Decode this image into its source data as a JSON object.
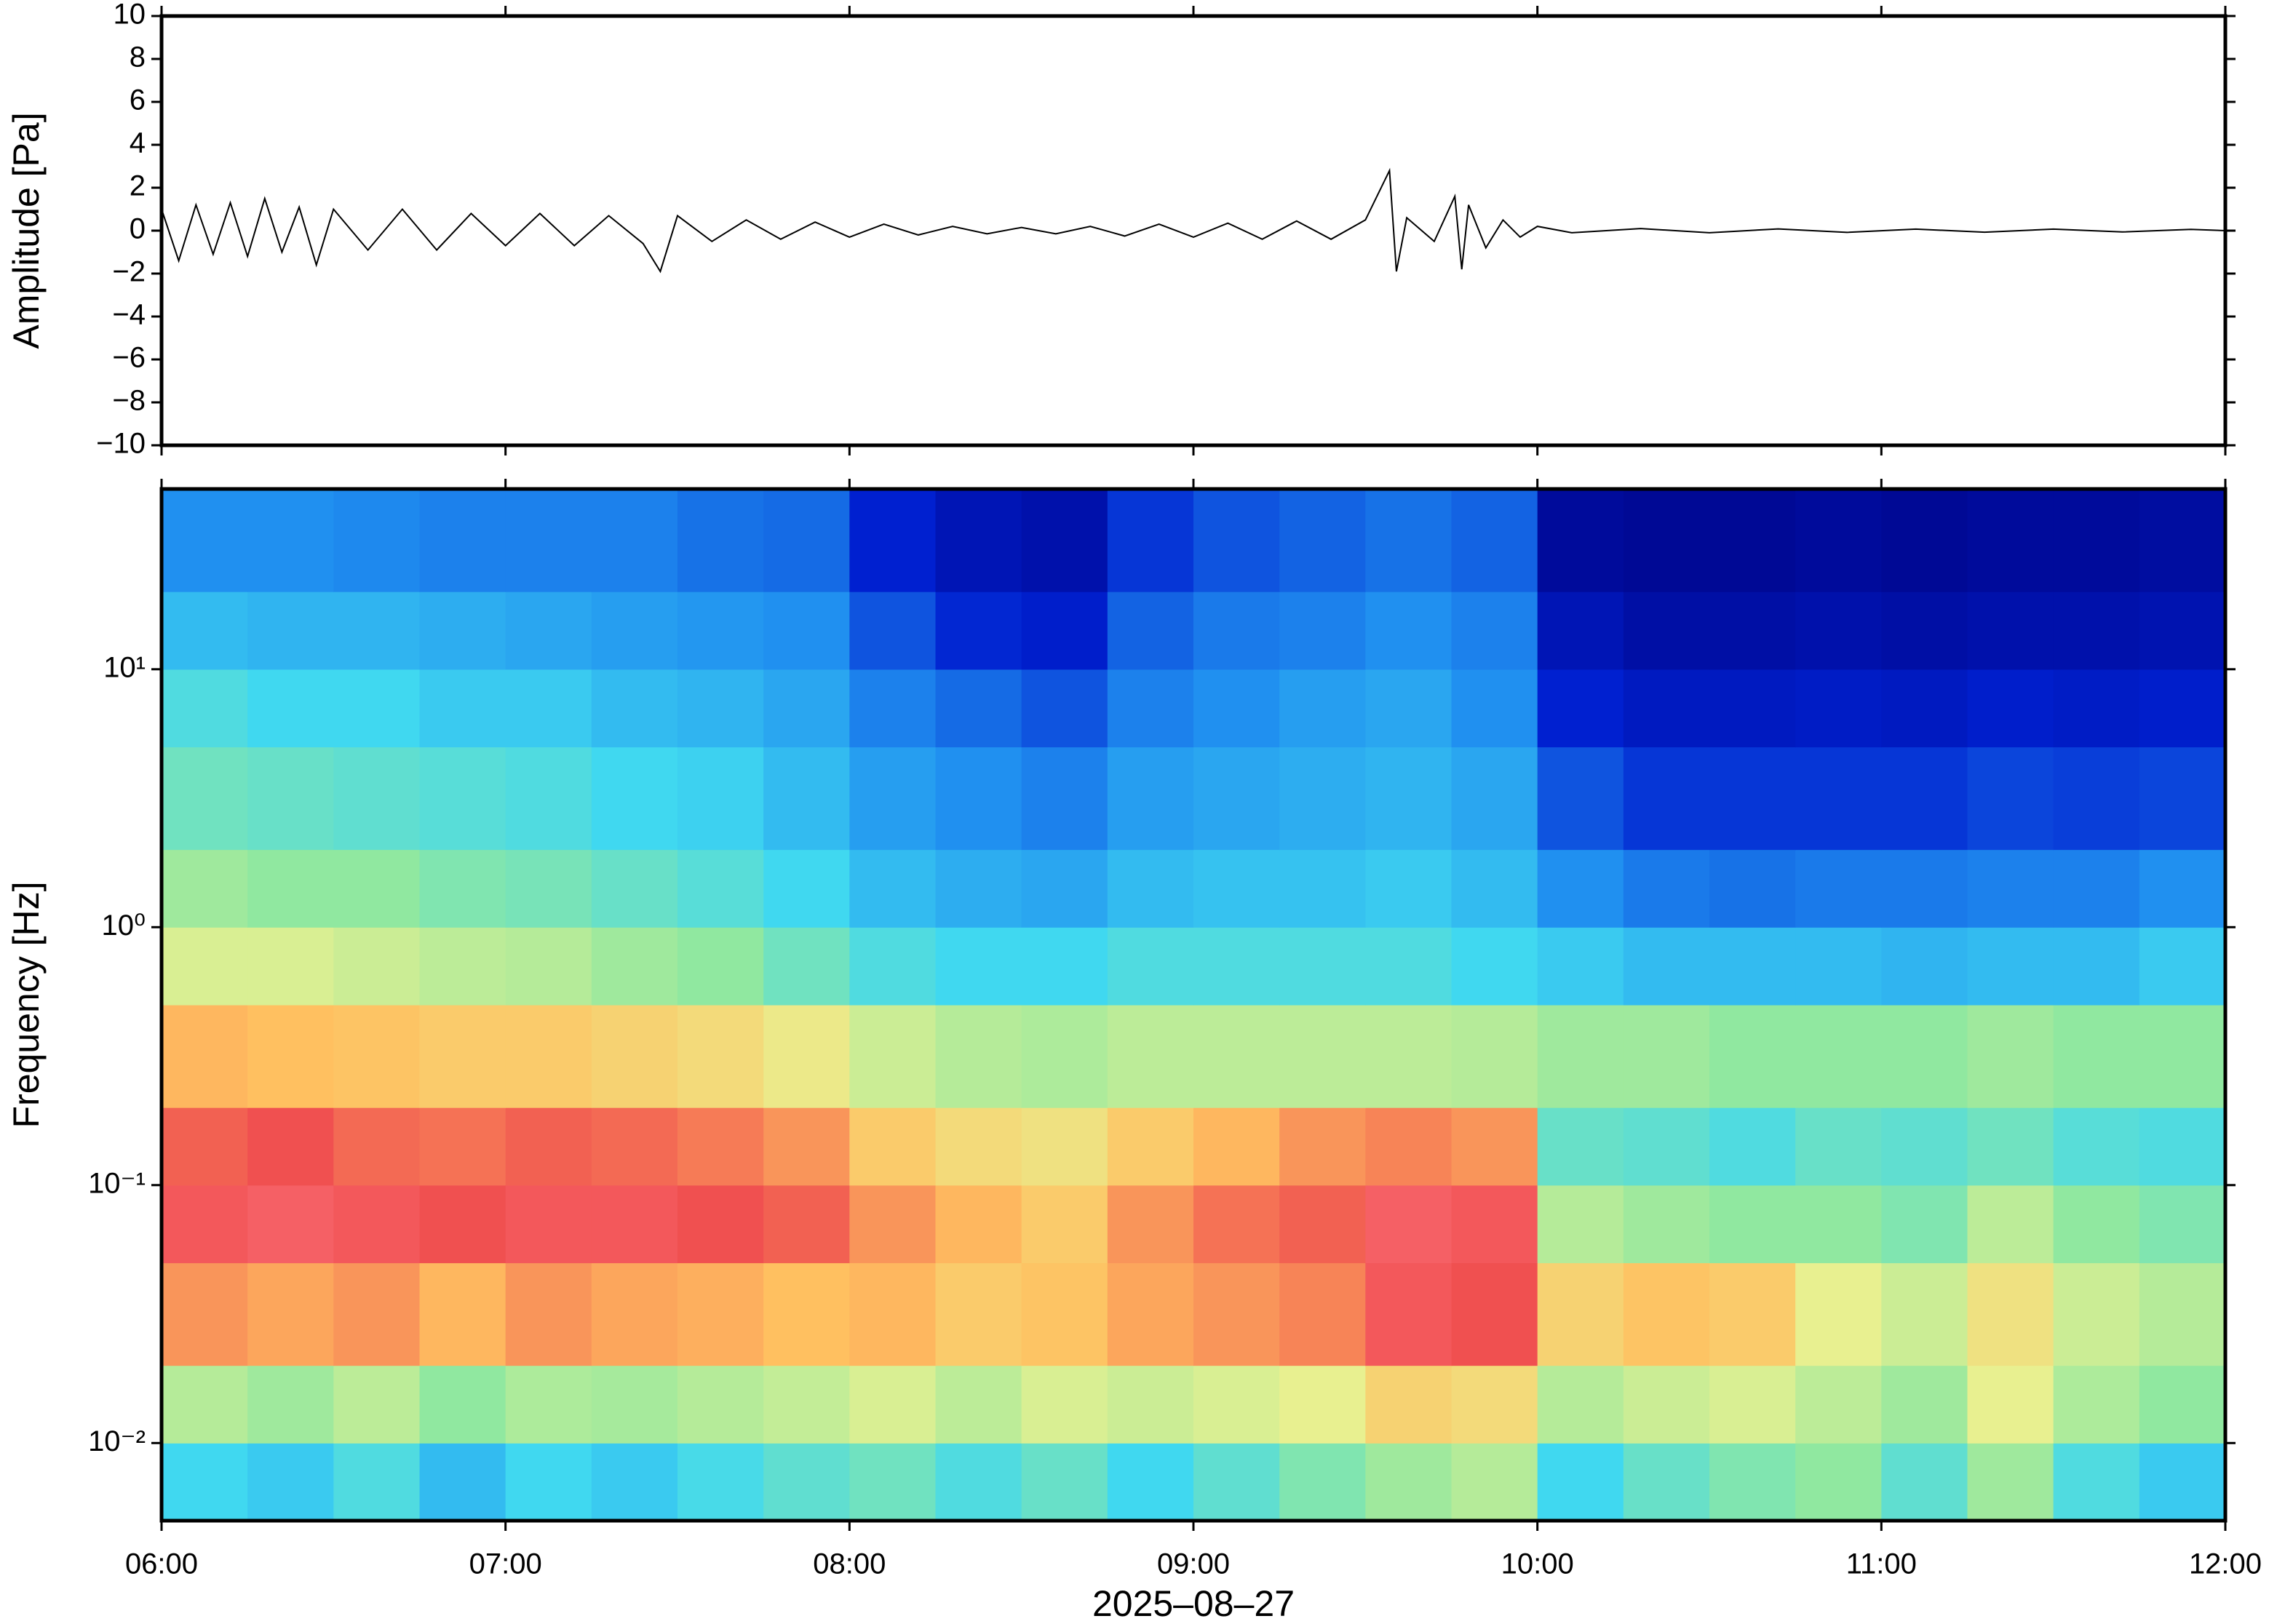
{
  "chart_data": [
    {
      "type": "line",
      "ylabel": "Amplitude [Pa]",
      "color": "#000000",
      "x": [
        6.0,
        6.05,
        6.1,
        6.15,
        6.2,
        6.25,
        6.3,
        6.35,
        6.4,
        6.45,
        6.5,
        6.6,
        6.7,
        6.8,
        6.9,
        7.0,
        7.1,
        7.2,
        7.3,
        7.4,
        7.45,
        7.5,
        7.6,
        7.7,
        7.8,
        7.9,
        8.0,
        8.1,
        8.2,
        8.3,
        8.4,
        8.5,
        8.6,
        8.7,
        8.8,
        8.9,
        9.0,
        9.1,
        9.2,
        9.3,
        9.4,
        9.5,
        9.57,
        9.59,
        9.62,
        9.7,
        9.76,
        9.78,
        9.8,
        9.85,
        9.9,
        9.95,
        10.0,
        10.1,
        10.3,
        10.5,
        10.7,
        10.9,
        11.1,
        11.3,
        11.5,
        11.7,
        11.9,
        12.0
      ],
      "values": [
        1.0,
        -1.4,
        1.2,
        -1.1,
        1.3,
        -1.2,
        1.5,
        -1.0,
        1.1,
        -1.6,
        1.0,
        -0.9,
        1.0,
        -0.9,
        0.8,
        -0.7,
        0.8,
        -0.7,
        0.7,
        -0.6,
        -1.9,
        0.7,
        -0.5,
        0.5,
        -0.4,
        0.4,
        -0.3,
        0.3,
        -0.2,
        0.2,
        -0.15,
        0.15,
        -0.15,
        0.2,
        -0.25,
        0.3,
        -0.3,
        0.35,
        -0.4,
        0.45,
        -0.4,
        0.5,
        2.8,
        -1.9,
        0.6,
        -0.5,
        1.6,
        -1.8,
        1.2,
        -0.8,
        0.5,
        -0.3,
        0.2,
        -0.1,
        0.1,
        -0.1,
        0.08,
        -0.08,
        0.07,
        -0.07,
        0.07,
        -0.06,
        0.06,
        0
      ],
      "xlim": [
        6,
        12
      ],
      "xticks": [
        6,
        7,
        8,
        9,
        10,
        11,
        12
      ],
      "ylim": [
        -10,
        10
      ],
      "yticks": [
        {
          "value": -10,
          "label": "−10"
        },
        {
          "value": -8,
          "label": "−8"
        },
        {
          "value": -6,
          "label": "−6"
        },
        {
          "value": -4,
          "label": "−4"
        },
        {
          "value": -2,
          "label": "−2"
        },
        0,
        2,
        4,
        6,
        8,
        10
      ]
    },
    {
      "type": "heatmap",
      "ylabel": "Frequency [Hz]",
      "xlabel": "2025–08–27",
      "log_y": true,
      "xbins": [
        6,
        6.25,
        6.5,
        6.75,
        7,
        7.25,
        7.5,
        7.75,
        8,
        8.25,
        8.5,
        8.75,
        9,
        9.25,
        9.5,
        9.75,
        10,
        10.25,
        10.5,
        10.75,
        11,
        11.25,
        11.5,
        11.75,
        12
      ],
      "ybins": [
        0.005,
        0.01,
        0.02,
        0.05,
        0.1,
        0.2,
        0.5,
        1,
        2,
        5,
        10,
        20,
        50
      ],
      "z": [
        [
          0.4,
          0.38,
          0.42,
          0.36,
          0.4,
          0.38,
          0.41,
          0.44,
          0.46,
          0.42,
          0.45,
          0.4,
          0.44,
          0.48,
          0.52,
          0.55,
          0.4,
          0.45,
          0.48,
          0.5,
          0.44,
          0.52,
          0.42,
          0.38
        ],
        [
          0.55,
          0.52,
          0.56,
          0.5,
          0.54,
          0.53,
          0.55,
          0.57,
          0.6,
          0.56,
          0.6,
          0.58,
          0.6,
          0.62,
          0.7,
          0.68,
          0.55,
          0.58,
          0.6,
          0.56,
          0.52,
          0.62,
          0.54,
          0.5
        ],
        [
          0.8,
          0.78,
          0.8,
          0.76,
          0.8,
          0.78,
          0.77,
          0.75,
          0.76,
          0.72,
          0.74,
          0.78,
          0.8,
          0.82,
          0.9,
          0.88,
          0.7,
          0.74,
          0.72,
          0.62,
          0.58,
          0.66,
          0.58,
          0.55
        ],
        [
          0.9,
          0.92,
          0.9,
          0.88,
          0.9,
          0.9,
          0.88,
          0.86,
          0.8,
          0.76,
          0.72,
          0.8,
          0.84,
          0.86,
          0.92,
          0.9,
          0.55,
          0.52,
          0.5,
          0.5,
          0.48,
          0.56,
          0.5,
          0.48
        ],
        [
          0.86,
          0.88,
          0.85,
          0.84,
          0.86,
          0.85,
          0.83,
          0.8,
          0.72,
          0.68,
          0.66,
          0.72,
          0.76,
          0.8,
          0.82,
          0.8,
          0.45,
          0.44,
          0.42,
          0.45,
          0.44,
          0.46,
          0.43,
          0.42
        ],
        [
          0.76,
          0.75,
          0.74,
          0.72,
          0.72,
          0.7,
          0.68,
          0.64,
          0.58,
          0.55,
          0.54,
          0.56,
          0.56,
          0.56,
          0.56,
          0.55,
          0.52,
          0.52,
          0.5,
          0.5,
          0.5,
          0.52,
          0.5,
          0.5
        ],
        [
          0.6,
          0.6,
          0.58,
          0.56,
          0.55,
          0.52,
          0.5,
          0.46,
          0.42,
          0.4,
          0.4,
          0.42,
          0.42,
          0.42,
          0.42,
          0.4,
          0.38,
          0.36,
          0.36,
          0.36,
          0.35,
          0.36,
          0.36,
          0.38
        ],
        [
          0.52,
          0.5,
          0.5,
          0.48,
          0.47,
          0.45,
          0.43,
          0.4,
          0.36,
          0.34,
          0.33,
          0.36,
          0.37,
          0.37,
          0.38,
          0.36,
          0.3,
          0.27,
          0.26,
          0.27,
          0.27,
          0.28,
          0.28,
          0.3
        ],
        [
          0.46,
          0.45,
          0.44,
          0.43,
          0.42,
          0.4,
          0.39,
          0.36,
          0.32,
          0.3,
          0.28,
          0.32,
          0.33,
          0.34,
          0.35,
          0.33,
          0.22,
          0.18,
          0.18,
          0.18,
          0.18,
          0.2,
          0.19,
          0.2
        ],
        [
          0.42,
          0.4,
          0.4,
          0.38,
          0.38,
          0.36,
          0.35,
          0.33,
          0.28,
          0.25,
          0.22,
          0.28,
          0.3,
          0.32,
          0.33,
          0.3,
          0.15,
          0.12,
          0.12,
          0.13,
          0.12,
          0.14,
          0.13,
          0.14
        ],
        [
          0.36,
          0.35,
          0.35,
          0.34,
          0.33,
          0.32,
          0.31,
          0.3,
          0.22,
          0.16,
          0.14,
          0.24,
          0.27,
          0.28,
          0.3,
          0.28,
          0.1,
          0.07,
          0.07,
          0.08,
          0.07,
          0.08,
          0.08,
          0.09
        ],
        [
          0.3,
          0.3,
          0.29,
          0.28,
          0.28,
          0.28,
          0.26,
          0.25,
          0.15,
          0.1,
          0.08,
          0.18,
          0.22,
          0.24,
          0.26,
          0.24,
          0.05,
          0.04,
          0.04,
          0.05,
          0.04,
          0.05,
          0.05,
          0.06
        ]
      ],
      "colormap": [
        [
          0,
          "#000080"
        ],
        [
          0.15,
          "#0020d0"
        ],
        [
          0.3,
          "#2090f0"
        ],
        [
          0.4,
          "#40d8f0"
        ],
        [
          0.5,
          "#90e8a0"
        ],
        [
          0.62,
          "#e8f090"
        ],
        [
          0.75,
          "#ffc060"
        ],
        [
          0.88,
          "#f05050"
        ],
        [
          1,
          "#ff8090"
        ]
      ],
      "xlim": [
        6,
        12
      ],
      "xticks": [
        {
          "value": 6,
          "label": "06:00"
        },
        {
          "value": 7,
          "label": "07:00"
        },
        {
          "value": 8,
          "label": "08:00"
        },
        {
          "value": 9,
          "label": "09:00"
        },
        {
          "value": 10,
          "label": "10:00"
        },
        {
          "value": 11,
          "label": "11:00"
        },
        {
          "value": 12,
          "label": "12:00"
        }
      ],
      "ylim": [
        0.005,
        50
      ],
      "yticks": [
        {
          "value": 0.01,
          "label": "10⁻²"
        },
        {
          "value": 0.1,
          "label": "10⁻¹"
        },
        {
          "value": 1,
          "label": "10⁰"
        },
        {
          "value": 10,
          "label": "10¹"
        }
      ]
    }
  ]
}
